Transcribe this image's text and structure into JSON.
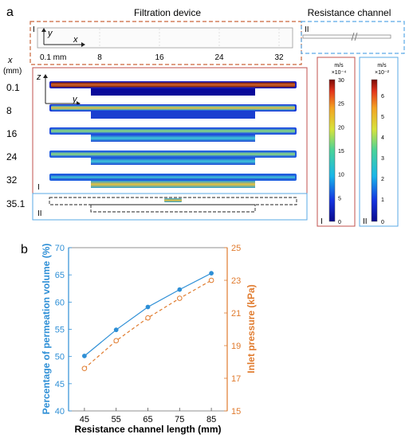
{
  "panel_a": {
    "label": "a",
    "filtration_title": "Filtration device",
    "resistance_title": "Resistance channel",
    "top_view": {
      "tag_left": "I",
      "tag_right": "II",
      "axis_y": "y",
      "axis_x": "x",
      "scale_labels": [
        "0.1 mm",
        "8",
        "16",
        "24",
        "32"
      ]
    },
    "x_axis_name": "x",
    "x_axis_unit": "(mm)",
    "cross_sections": {
      "axis_z": "z",
      "axis_y": "y",
      "row_labels": [
        "0.1",
        "8",
        "16",
        "24",
        "32",
        "35.1"
      ],
      "tag_I": "I",
      "tag_II": "II"
    },
    "colorbar_I": {
      "unit": "m/s",
      "multiplier": "×10⁻⁴",
      "ticks": [
        "30",
        "25",
        "20",
        "15",
        "10",
        "5",
        "0"
      ],
      "tag": "I",
      "frame_color": "#c0504d"
    },
    "colorbar_II": {
      "unit": "m/s",
      "multiplier": "×10⁻²",
      "ticks": [
        "6",
        "5",
        "4",
        "3",
        "2",
        "1",
        "0"
      ],
      "tag": "II",
      "frame_color": "#5aa9e6"
    }
  },
  "chart_data": {
    "label": "b",
    "type": "line",
    "x": [
      45,
      55,
      65,
      75,
      85
    ],
    "xlabel": "Resistance channel length (mm)",
    "xlim": [
      40,
      90
    ],
    "xticks": [
      "45",
      "55",
      "65",
      "75",
      "85"
    ],
    "series": [
      {
        "axis": "left",
        "values": [
          50.1,
          54.9,
          59.1,
          62.3,
          65.3
        ],
        "color": "#2e8fd6",
        "style": "solid",
        "marker": "filled-circle"
      },
      {
        "axis": "right",
        "values": [
          17.6,
          19.3,
          20.7,
          21.9,
          23.0
        ],
        "color": "#e07b2e",
        "style": "dashed",
        "marker": "open-circle"
      }
    ],
    "y_left": {
      "label": "Percentage of permeation volume (%)",
      "lim": [
        40,
        70
      ],
      "ticks": [
        "40",
        "45",
        "50",
        "55",
        "60",
        "65",
        "70"
      ],
      "color": "#2e8fd6"
    },
    "y_right": {
      "label": "Inlet pressure (kPa)",
      "lim": [
        15,
        25
      ],
      "ticks": [
        "15",
        "17",
        "19",
        "21",
        "23",
        "25"
      ],
      "color": "#e07b2e"
    },
    "grid": false
  }
}
